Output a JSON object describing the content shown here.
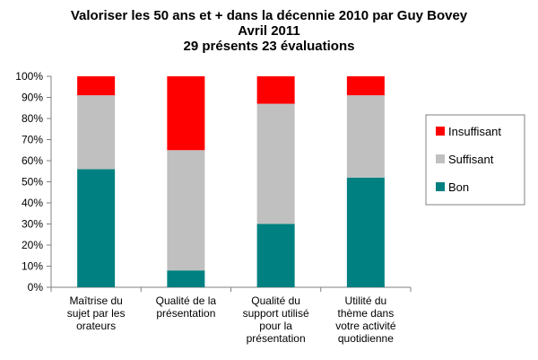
{
  "chart_data": {
    "type": "bar",
    "stacked": "percent",
    "title": [
      "Valoriser les 50 ans et + dans la décennie 2010 par Guy Bovey",
      "Avril 2011",
      "29 présents 23 évaluations"
    ],
    "xlabel": "",
    "ylabel": "",
    "ylim": [
      0,
      100
    ],
    "yticks": [
      "0%",
      "10%",
      "20%",
      "30%",
      "40%",
      "50%",
      "60%",
      "70%",
      "80%",
      "90%",
      "100%"
    ],
    "grid": false,
    "legend_position": "right",
    "categories": [
      [
        "Maîtrise du",
        "sujet par les",
        "orateurs"
      ],
      [
        "Qualité de la",
        "présentation"
      ],
      [
        "Qualité du",
        "support utilisé",
        "pour la",
        "présentation"
      ],
      [
        "Utilité du",
        "thème dans",
        "votre activité",
        "quotidienne"
      ]
    ],
    "series": [
      {
        "name": "Bon",
        "color": "#008080",
        "values": [
          56,
          8,
          30,
          52
        ]
      },
      {
        "name": "Suffisant",
        "color": "#c0c0c0",
        "values": [
          35,
          57,
          57,
          39
        ]
      },
      {
        "name": "Insuffisant",
        "color": "#ff0000",
        "values": [
          9,
          35,
          13,
          9
        ]
      }
    ],
    "legend_order": [
      "Insuffisant",
      "Suffisant",
      "Bon"
    ]
  }
}
